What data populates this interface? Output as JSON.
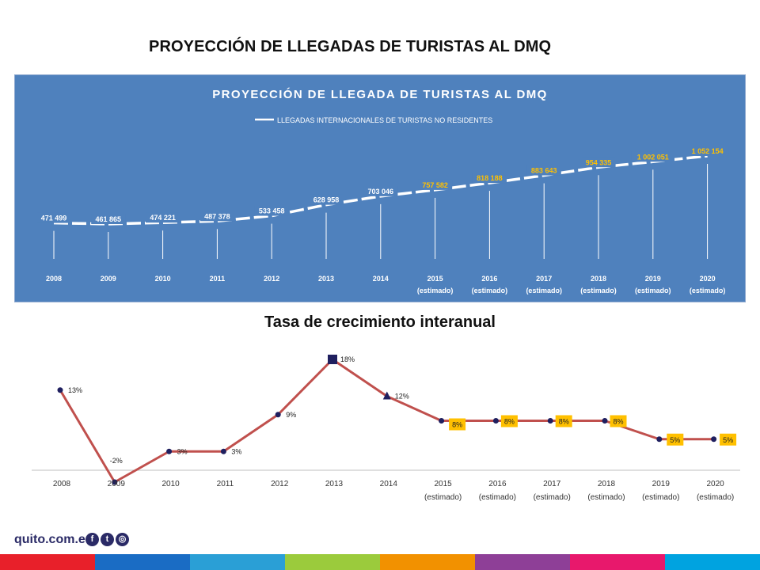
{
  "page_title": "PROYECCIÓN DE LLEGADAS DE TURISTAS AL DMQ",
  "colors": {
    "panel": "#4f81bd",
    "line1": "#ffffff",
    "estimate_label": "#ffc000",
    "line2": "#c0504d",
    "marker2": "#1f1f5f",
    "badge": "#ffc000",
    "footer_strip": [
      "#e8202a",
      "#1a6cc4",
      "#2a9fd6",
      "#9bcb3c",
      "#f29100",
      "#8e3f97",
      "#e8186c",
      "#00a3e0"
    ]
  },
  "chart_data": [
    {
      "type": "line",
      "title": "PROYECCIÓN DE LLEGADA DE TURISTAS AL DMQ",
      "legend": "top-center",
      "grid": false,
      "categories": [
        "2008",
        "2009",
        "2010",
        "2011",
        "2012",
        "2013",
        "2014",
        "2015 (estimado)",
        "2016 (estimado)",
        "2017 (estimado)",
        "2018 (estimado)",
        "2019 (estimado)",
        "2020 (estimado)"
      ],
      "series": [
        {
          "name": "LLEGADAS INTERNACIONALES DE TURISTAS NO RESIDENTES",
          "values": [
            471499,
            461865,
            474221,
            487378,
            533458,
            628958,
            703046,
            757582,
            818188,
            883643,
            954335,
            1002051,
            1052154
          ],
          "labels": [
            "471 499",
            "461 865",
            "474 221",
            "487 378",
            "533 458",
            "628 958",
            "703 046",
            "757 582",
            "818 188",
            "883 643",
            "954 335",
            "1 002 051",
            "1 052 154"
          ]
        }
      ]
    },
    {
      "type": "line",
      "title": "Tasa de crecimiento interanual",
      "grid": false,
      "categories": [
        "2008",
        "2009",
        "2010",
        "2011",
        "2012",
        "2013",
        "2014",
        "2015 (estimado)",
        "2016 (estimado)",
        "2017 (estimado)",
        "2018 (estimado)",
        "2019 (estimado)",
        "2020 (estimado)"
      ],
      "series": [
        {
          "values": [
            13,
            -2,
            3,
            3,
            9,
            18,
            12,
            8,
            8,
            8,
            8,
            5,
            5
          ],
          "labels": [
            "13%",
            "-2%",
            "3%",
            "3%",
            "9%",
            "18%",
            "12%",
            "8%",
            "8%",
            "8%",
            "8%",
            "5%",
            "5%"
          ]
        }
      ]
    }
  ],
  "footer": {
    "site": "quito.com.ec",
    "social_icons": [
      "facebook-icon",
      "twitter-icon",
      "instagram-icon"
    ]
  }
}
